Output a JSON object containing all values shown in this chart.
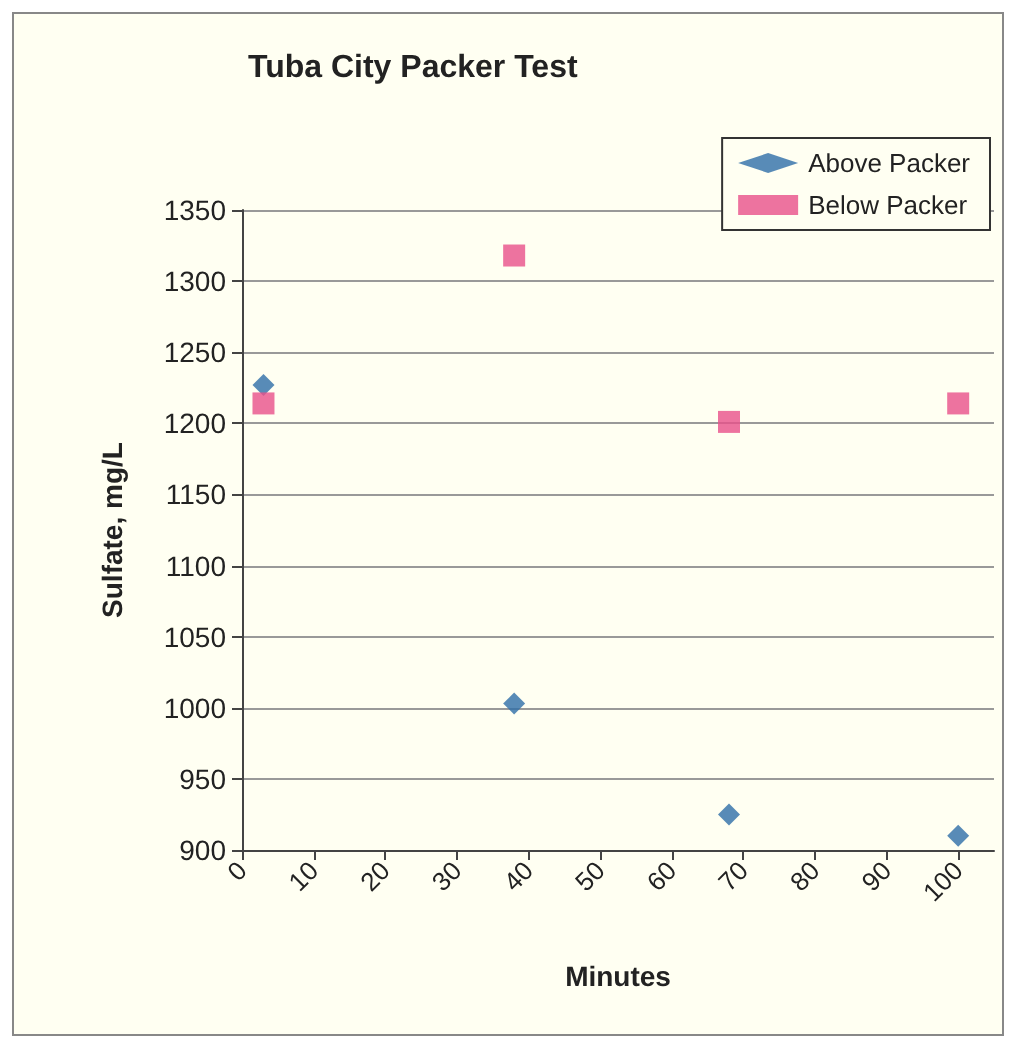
{
  "chart_data": {
    "type": "scatter",
    "title": "Tuba City Packer Test",
    "xlabel": "Minutes",
    "ylabel": "Sulfate, mg/L",
    "x": [
      3,
      38,
      68,
      100
    ],
    "series": [
      {
        "name": "Above Packer",
        "color": "#2e6ea8",
        "marker": "diamond",
        "values": [
          1227,
          1003,
          925,
          910
        ]
      },
      {
        "name": "Below Packer",
        "color": "#e8508a",
        "marker": "square",
        "values": [
          1214,
          1318,
          1201,
          1214
        ]
      }
    ],
    "xlim": [
      0,
      105
    ],
    "xticks": [
      0,
      10,
      20,
      30,
      40,
      50,
      60,
      70,
      80,
      90,
      100
    ],
    "ylim": [
      900,
      1350
    ],
    "yticks": [
      900,
      950,
      1000,
      1050,
      1100,
      1150,
      1200,
      1250,
      1300,
      1350
    ],
    "grid": "y",
    "legend": "top right"
  }
}
